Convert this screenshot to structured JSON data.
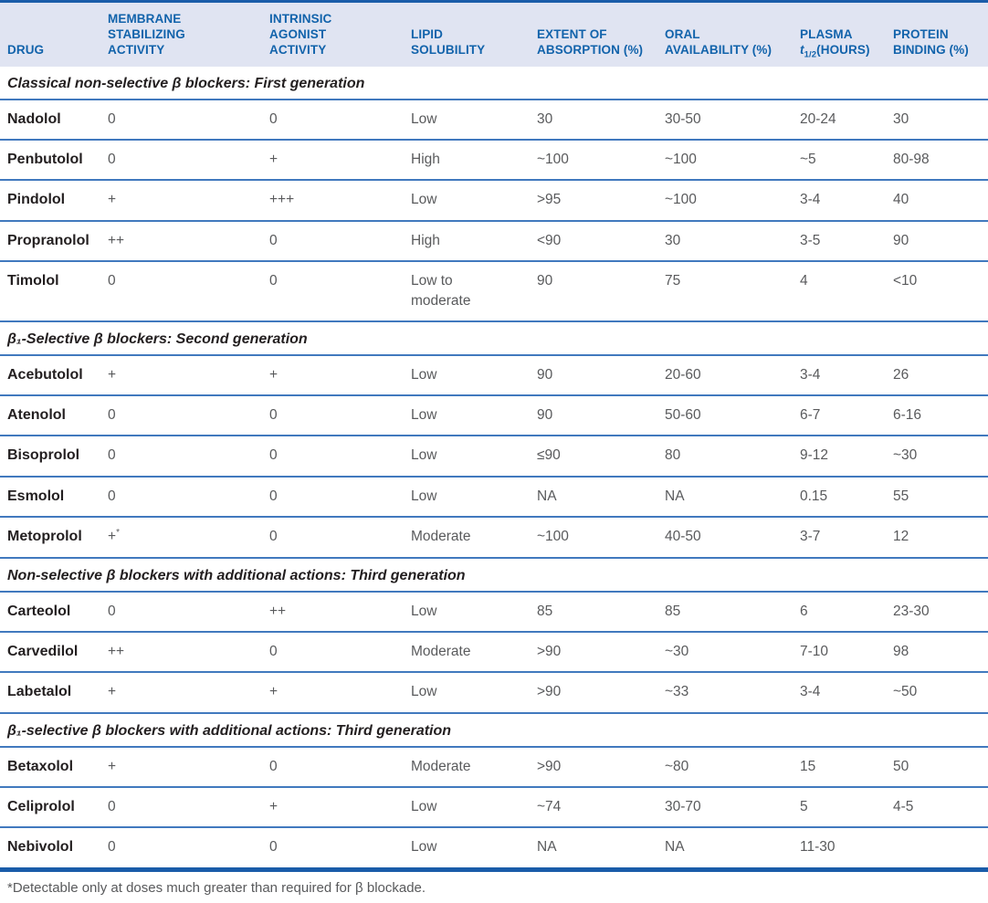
{
  "colors": {
    "accent_dark_blue": "#1a5ca9",
    "row_line_blue": "#4179be",
    "header_bg": "#e0e4f2",
    "header_text": "#1263ab",
    "drug_text": "#231f20",
    "cell_text": "#595a5c"
  },
  "table": {
    "header": {
      "drug": "DRUG",
      "membrane": "MEMBRANE\nSTABILIZING\nACTIVITY",
      "intrinsic": "INTRINSIC\nAGONIST\nACTIVITY",
      "lipid": "LIPID\nSOLUBILITY",
      "absorption": "EXTENT OF\nABSORPTION (%)",
      "oral": "ORAL\nAVAILABILITY (%)",
      "plasma_line1": "PLASMA",
      "plasma_t": "t",
      "plasma_sub": "1/2",
      "plasma_rest": "(HOURS)",
      "protein": "PROTEIN\nBINDING (%)"
    },
    "sections": [
      {
        "title": "Classical non-selective β blockers: First generation",
        "rows": [
          {
            "drug": "Nadolol",
            "msa": "0",
            "iaa": "0",
            "lipid": "Low",
            "absorption": "30",
            "oral": "30-50",
            "plasma": "20-24",
            "protein": "30"
          },
          {
            "drug": "Penbutolol",
            "msa": "0",
            "iaa": "+",
            "lipid": "High",
            "absorption": "~100",
            "oral": "~100",
            "plasma": "~5",
            "protein": "80-98"
          },
          {
            "drug": "Pindolol",
            "msa": "+",
            "iaa": "+++",
            "lipid": "Low",
            "absorption": ">95",
            "oral": "~100",
            "plasma": "3-4",
            "protein": "40"
          },
          {
            "drug": "Propranolol",
            "msa": "++",
            "iaa": "0",
            "lipid": "High",
            "absorption": "<90",
            "oral": "30",
            "plasma": "3-5",
            "protein": "90"
          },
          {
            "drug": "Timolol",
            "msa": "0",
            "iaa": "0",
            "lipid": "Low to\nmoderate",
            "absorption": "90",
            "oral": "75",
            "plasma": "4",
            "protein": "<10"
          }
        ]
      },
      {
        "title": "β₁-Selective β blockers: Second generation",
        "rows": [
          {
            "drug": "Acebutolol",
            "msa": "+",
            "iaa": "+",
            "lipid": "Low",
            "absorption": "90",
            "oral": "20-60",
            "plasma": "3-4",
            "protein": "26"
          },
          {
            "drug": "Atenolol",
            "msa": "0",
            "iaa": "0",
            "lipid": "Low",
            "absorption": "90",
            "oral": "50-60",
            "plasma": "6-7",
            "protein": "6-16"
          },
          {
            "drug": "Bisoprolol",
            "msa": "0",
            "iaa": "0",
            "lipid": "Low",
            "absorption": "≤90",
            "oral": "80",
            "plasma": "9-12",
            "protein": "~30"
          },
          {
            "drug": "Esmolol",
            "msa": "0",
            "iaa": "0",
            "lipid": "Low",
            "absorption": "NA",
            "oral": "NA",
            "plasma": "0.15",
            "protein": "55"
          },
          {
            "drug": "Metoprolol",
            "msa": "+",
            "msa_sup": "*",
            "iaa": "0",
            "lipid": "Moderate",
            "absorption": "~100",
            "oral": "40-50",
            "plasma": "3-7",
            "protein": "12"
          }
        ]
      },
      {
        "title": "Non-selective β blockers with additional actions: Third generation",
        "rows": [
          {
            "drug": "Carteolol",
            "msa": "0",
            "iaa": "++",
            "lipid": "Low",
            "absorption": "85",
            "oral": "85",
            "plasma": "6",
            "protein": "23-30"
          },
          {
            "drug": "Carvedilol",
            "msa": "++",
            "iaa": "0",
            "lipid": "Moderate",
            "absorption": ">90",
            "oral": "~30",
            "plasma": "7-10",
            "protein": "98"
          },
          {
            "drug": "Labetalol",
            "msa": "+",
            "iaa": "+",
            "lipid": "Low",
            "absorption": ">90",
            "oral": "~33",
            "plasma": "3-4",
            "protein": "~50"
          }
        ]
      },
      {
        "title": "β₁-selective β blockers with additional actions: Third generation",
        "rows": [
          {
            "drug": "Betaxolol",
            "msa": "+",
            "iaa": "0",
            "lipid": "Moderate",
            "absorption": ">90",
            "oral": "~80",
            "plasma": "15",
            "protein": "50"
          },
          {
            "drug": "Celiprolol",
            "msa": "0",
            "iaa": "+",
            "lipid": "Low",
            "absorption": "~74",
            "oral": "30-70",
            "plasma": "5",
            "protein": "4-5"
          },
          {
            "drug": "Nebivolol",
            "msa": "0",
            "iaa": "0",
            "lipid": "Low",
            "absorption": "NA",
            "oral": "NA",
            "plasma": "11-30",
            "protein": ""
          }
        ]
      }
    ],
    "footnote": "*Detectable only at doses much greater than required for β blockade."
  }
}
